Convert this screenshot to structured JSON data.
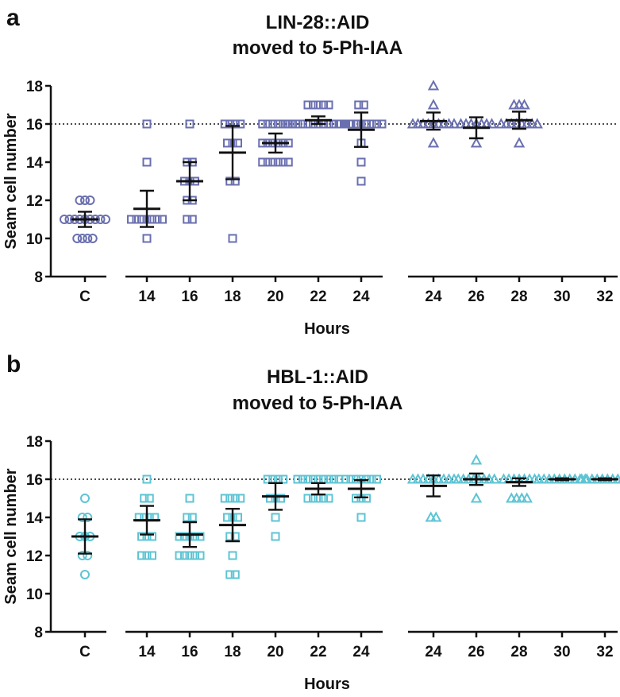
{
  "chart_data": [
    {
      "type": "scatter",
      "panel_label": "a",
      "title_lines": [
        "LIN-28::AID",
        "moved to 5-Ph-IAA"
      ],
      "ylabel": "Seam cell number",
      "xlabel": "Hours",
      "ylim": [
        8,
        18
      ],
      "yticks": [
        8,
        10,
        12,
        14,
        16,
        18
      ],
      "reference_line": 16,
      "color": "#6A6FB0",
      "groups": [
        {
          "label": "C",
          "marker": "circle",
          "values": [
            10,
            10,
            10,
            10,
            11,
            11,
            11,
            11,
            11,
            11,
            11,
            11,
            11,
            12,
            12,
            12
          ],
          "mean": 11.0,
          "err": 0.4
        },
        {
          "label": "14",
          "marker": "square",
          "values": [
            10,
            11,
            11,
            11,
            11,
            11,
            11,
            11,
            14,
            16
          ],
          "mean": 11.55,
          "err": 0.95
        },
        {
          "label": "16",
          "marker": "square",
          "values": [
            11,
            11,
            12,
            12,
            13,
            13,
            13,
            14,
            14,
            16
          ],
          "mean": 13.0,
          "err": 1.0
        },
        {
          "label": "18",
          "marker": "square",
          "values": [
            10,
            13,
            13,
            15,
            15,
            15,
            16,
            16,
            16,
            16
          ],
          "mean": 14.5,
          "err": 1.4
        },
        {
          "label": "20",
          "marker": "square",
          "values": [
            14,
            14,
            14,
            14,
            14,
            14,
            15,
            15,
            15,
            15,
            15,
            15,
            16,
            16,
            16,
            16,
            16,
            16
          ],
          "mean": 15.0,
          "err": 0.5
        },
        {
          "label": "22",
          "marker": "square",
          "values": [
            16,
            16,
            16,
            16,
            16,
            16,
            16,
            16,
            16,
            16,
            16,
            16,
            16,
            17,
            17,
            17,
            17,
            17
          ],
          "mean": 16.2,
          "err": 0.2
        },
        {
          "label": "24",
          "marker": "square",
          "values": [
            13,
            14,
            15,
            16,
            16,
            16,
            16,
            16,
            16,
            16,
            16,
            16,
            17,
            17
          ],
          "mean": 15.7,
          "err": 0.9
        },
        {
          "label": "24",
          "marker": "triangle",
          "values": [
            15,
            16,
            16,
            16,
            16,
            16,
            16,
            16,
            16,
            16,
            17,
            18
          ],
          "mean": 16.15,
          "err": 0.45
        },
        {
          "label": "26",
          "marker": "triangle",
          "values": [
            15,
            16,
            16,
            16,
            16,
            16,
            16,
            16
          ],
          "mean": 15.8,
          "err": 0.55
        },
        {
          "label": "28",
          "marker": "triangle",
          "values": [
            15,
            16,
            16,
            16,
            16,
            16,
            16,
            16,
            16,
            17,
            17,
            17
          ],
          "mean": 16.2,
          "err": 0.45
        },
        {
          "label": "30",
          "marker": "triangle",
          "values": [],
          "mean": null,
          "err": null
        },
        {
          "label": "32",
          "marker": "triangle",
          "values": [],
          "mean": null,
          "err": null
        }
      ]
    },
    {
      "type": "scatter",
      "panel_label": "b",
      "title_lines": [
        "HBL-1::AID",
        "moved to 5-Ph-IAA"
      ],
      "ylabel": "Seam cell number",
      "xlabel": "Hours",
      "ylim": [
        8,
        18
      ],
      "yticks": [
        8,
        10,
        12,
        14,
        16,
        18
      ],
      "reference_line": 16,
      "color": "#5EC4D4",
      "groups": [
        {
          "label": "C",
          "marker": "circle",
          "values": [
            11,
            12,
            12,
            13,
            13,
            13,
            14,
            14,
            15
          ],
          "mean": 13.0,
          "err": 0.9
        },
        {
          "label": "14",
          "marker": "square",
          "values": [
            12,
            12,
            12,
            13,
            13,
            13,
            14,
            14,
            14,
            14,
            15,
            15,
            16
          ],
          "mean": 13.85,
          "err": 0.75
        },
        {
          "label": "16",
          "marker": "square",
          "values": [
            12,
            12,
            12,
            12,
            12,
            13,
            13,
            13,
            13,
            13,
            14,
            14,
            15
          ],
          "mean": 13.1,
          "err": 0.65
        },
        {
          "label": "18",
          "marker": "square",
          "values": [
            11,
            11,
            12,
            13,
            13,
            14,
            14,
            14,
            15,
            15,
            15,
            15
          ],
          "mean": 13.6,
          "err": 0.85
        },
        {
          "label": "20",
          "marker": "square",
          "values": [
            13,
            14,
            15,
            15,
            15,
            16,
            16,
            16,
            16
          ],
          "mean": 15.1,
          "err": 0.7
        },
        {
          "label": "22",
          "marker": "square",
          "values": [
            15,
            15,
            15,
            15,
            15,
            16,
            16,
            16,
            16,
            16,
            16,
            16,
            16,
            16
          ],
          "mean": 15.5,
          "err": 0.3
        },
        {
          "label": "24",
          "marker": "square",
          "values": [
            14,
            15,
            15,
            15,
            16,
            16,
            16,
            16,
            16,
            16,
            16
          ],
          "mean": 15.5,
          "err": 0.45
        },
        {
          "label": "24",
          "marker": "triangle",
          "values": [
            14,
            14,
            16,
            16,
            16,
            16,
            16,
            16,
            16,
            16,
            16
          ],
          "mean": 15.65,
          "err": 0.55
        },
        {
          "label": "26",
          "marker": "triangle",
          "values": [
            15,
            16,
            16,
            16,
            16,
            16,
            16,
            16,
            16,
            17
          ],
          "mean": 16.0,
          "err": 0.3
        },
        {
          "label": "28",
          "marker": "triangle",
          "values": [
            15,
            15,
            15,
            15,
            16,
            16,
            16,
            16,
            16,
            16,
            16
          ],
          "mean": 15.85,
          "err": 0.2
        },
        {
          "label": "30",
          "marker": "triangle",
          "values": [
            16,
            16,
            16,
            16,
            16,
            16,
            16,
            16,
            16,
            16
          ],
          "mean": 16.0,
          "err": 0.05
        },
        {
          "label": "32",
          "marker": "triangle",
          "values": [
            16,
            16,
            16,
            16,
            16,
            16,
            16,
            16,
            16,
            16
          ],
          "mean": 16.0,
          "err": 0.05
        }
      ]
    }
  ]
}
